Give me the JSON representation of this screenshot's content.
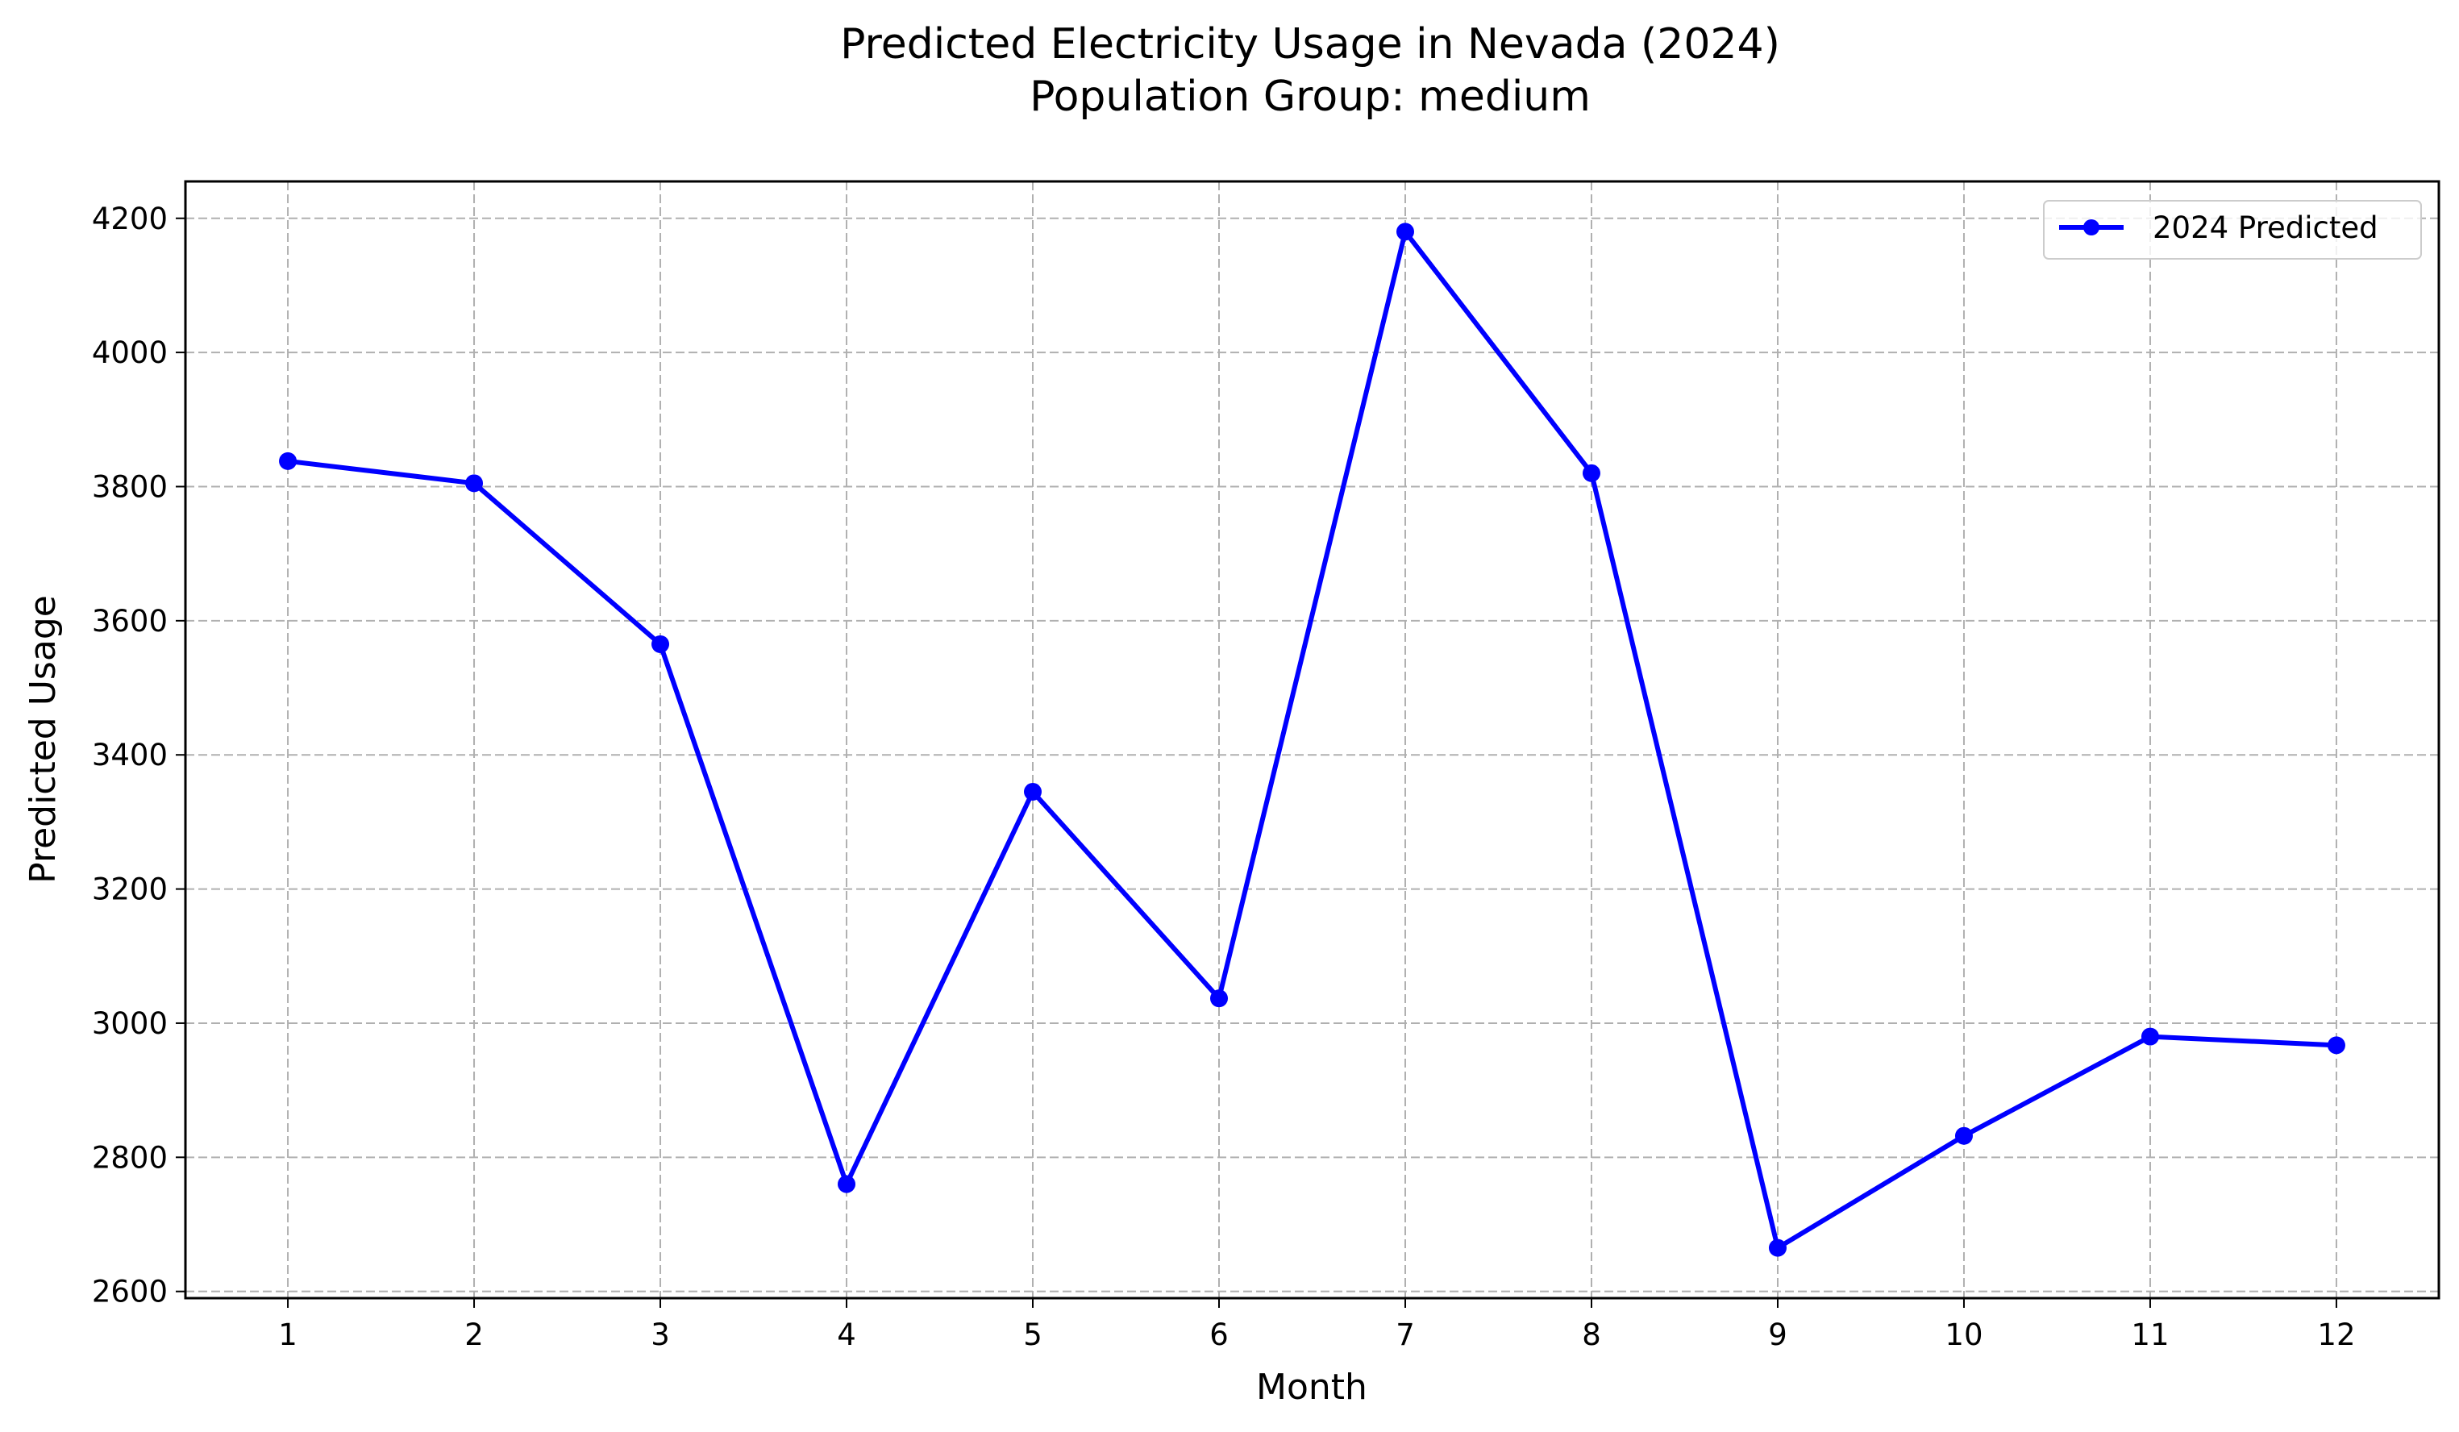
{
  "chart_data": {
    "type": "line",
    "title": "Predicted Electricity Usage in Nevada (2024)",
    "subtitle": "Population Group: medium",
    "xlabel": "Month",
    "ylabel": "Predicted Usage",
    "x": [
      1,
      2,
      3,
      4,
      5,
      6,
      7,
      8,
      9,
      10,
      11,
      12
    ],
    "x_tick_labels": [
      "1",
      "2",
      "3",
      "4",
      "5",
      "6",
      "7",
      "8",
      "9",
      "10",
      "11",
      "12"
    ],
    "y_ticks": [
      2600,
      2800,
      3000,
      3200,
      3400,
      3600,
      3800,
      4000,
      4200
    ],
    "y_tick_labels": [
      "2600",
      "2800",
      "3000",
      "3200",
      "3400",
      "3600",
      "3800",
      "4000",
      "4200"
    ],
    "xlim": [
      0.45,
      12.55
    ],
    "ylim": [
      2590,
      4255
    ],
    "grid": true,
    "grid_style": "dashed",
    "legend_position": "top-right",
    "series": [
      {
        "name": "2024 Predicted",
        "color": "#0000ff",
        "marker": "circle",
        "values": [
          3838,
          3805,
          3565,
          2760,
          3345,
          3037,
          4180,
          3820,
          2665,
          2832,
          2980,
          2967
        ]
      }
    ]
  }
}
